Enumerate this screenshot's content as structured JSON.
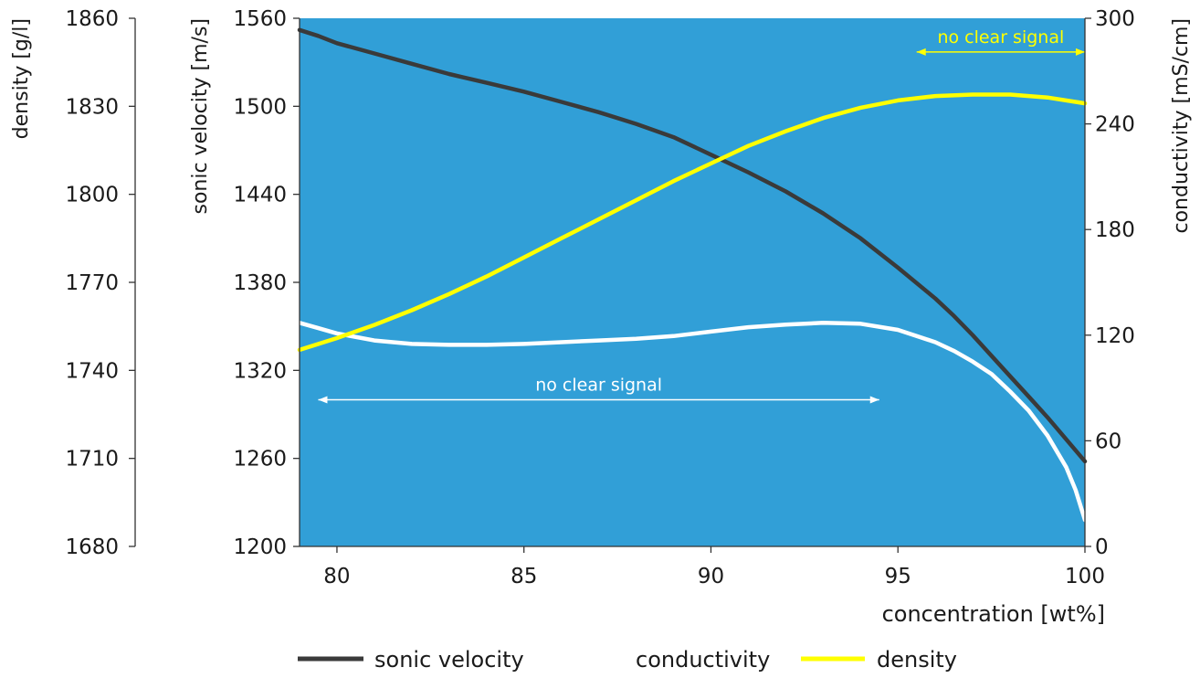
{
  "chart_data": {
    "type": "line",
    "title": "",
    "xlabel": "concentration [wt%]",
    "xlim": [
      79,
      100
    ],
    "xticks": [
      80,
      85,
      90,
      95,
      100
    ],
    "axes": {
      "density": {
        "label": "density [g/l]",
        "ylim": [
          1680,
          1860
        ],
        "ticks": [
          1680,
          1710,
          1740,
          1770,
          1800,
          1830,
          1860
        ]
      },
      "velocity": {
        "label": "sonic velocity [m/s]",
        "ylim": [
          1200,
          1560
        ],
        "ticks": [
          1200,
          1260,
          1320,
          1380,
          1440,
          1500,
          1560
        ]
      },
      "conductivity": {
        "label": "conductivity [mS/cm]",
        "ylim": [
          0,
          300
        ],
        "ticks": [
          0,
          60,
          120,
          180,
          240,
          300
        ]
      }
    },
    "series": [
      {
        "name": "sonic velocity",
        "axis": "velocity",
        "color": "#3a3a3a",
        "x": [
          79,
          79.5,
          80,
          81,
          82,
          83,
          84,
          85,
          86,
          87,
          88,
          89,
          90,
          91,
          92,
          93,
          94,
          95,
          96,
          96.5,
          97,
          97.5,
          98,
          98.5,
          99,
          99.5,
          100
        ],
        "y": [
          1552,
          1548,
          1543,
          1536,
          1529,
          1522,
          1516,
          1510,
          1503,
          1496,
          1488,
          1479,
          1467,
          1455,
          1442,
          1427,
          1410,
          1390,
          1369,
          1357,
          1344,
          1330,
          1316,
          1302,
          1288,
          1273,
          1258
        ]
      },
      {
        "name": "conductivity",
        "axis": "conductivity",
        "color": "#ffffff",
        "x": [
          79,
          79.5,
          80,
          81,
          82,
          83,
          84,
          85,
          86,
          87,
          88,
          89,
          90,
          91,
          92,
          93,
          94,
          95,
          96,
          96.5,
          97,
          97.5,
          98,
          98.5,
          99,
          99.5,
          99.75,
          100
        ],
        "y": [
          127,
          124,
          121,
          117,
          115,
          114.5,
          114.5,
          115,
          116,
          117,
          118,
          119.5,
          122,
          124.5,
          126,
          127,
          126.5,
          123,
          116,
          111,
          105,
          98,
          88,
          77,
          63,
          45,
          32,
          15
        ]
      },
      {
        "name": "density",
        "axis": "density",
        "color": "#ffff00",
        "x": [
          79,
          80,
          81,
          82,
          83,
          84,
          85,
          86,
          87,
          88,
          89,
          90,
          91,
          92,
          93,
          94,
          95,
          96,
          97,
          98,
          99,
          100
        ],
        "y": [
          1747,
          1751,
          1755.5,
          1760.5,
          1766,
          1772,
          1778.5,
          1785,
          1791.5,
          1798,
          1804.5,
          1810.5,
          1816.5,
          1821.5,
          1826,
          1829.5,
          1832,
          1833.5,
          1834,
          1834,
          1833,
          1831
        ]
      }
    ],
    "annotations": [
      {
        "text": "no clear signal",
        "color": "#ffffff",
        "x_from": 79.5,
        "x_to": 94.5,
        "y": 1300,
        "axis": "velocity"
      },
      {
        "text": "no clear signal",
        "color": "#ffff00",
        "x_from": 95.5,
        "x_to": 100,
        "y": 1537,
        "axis": "velocity"
      }
    ],
    "grid": false,
    "plot_background": "#319fd7",
    "legend": {
      "position": "bottom",
      "entries": [
        {
          "label": "sonic velocity",
          "color": "#3a3a3a"
        },
        {
          "label": "conductivity",
          "color": "#ffffff"
        },
        {
          "label": "density",
          "color": "#ffff00"
        }
      ]
    }
  }
}
